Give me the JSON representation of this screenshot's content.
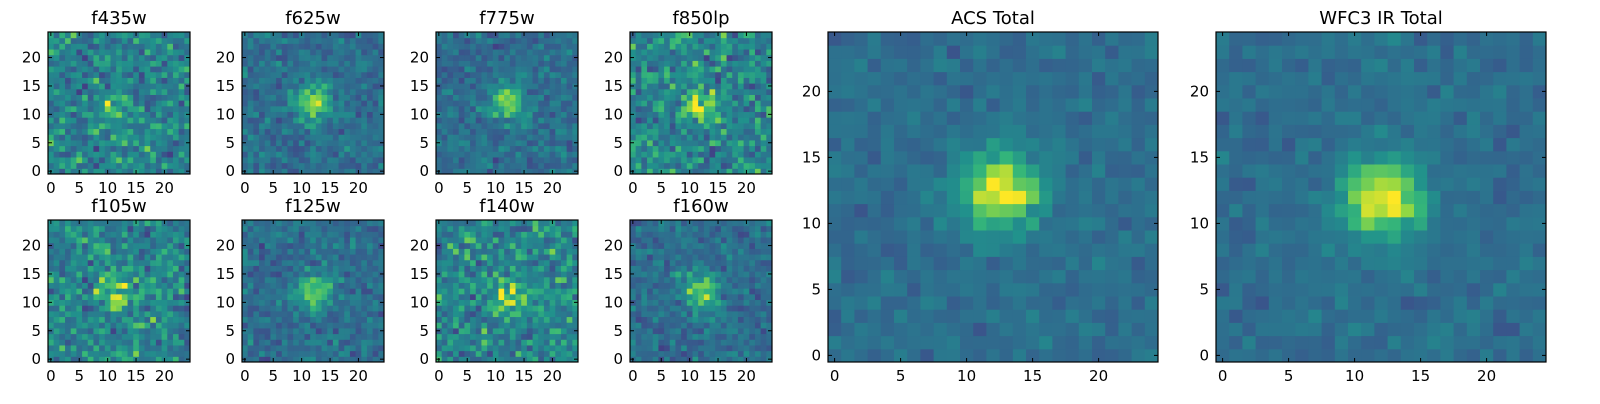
{
  "chart_data": [
    {
      "type": "heatmap",
      "title": "f435w",
      "colormap": "viridis",
      "x_range": [
        -0.5,
        24.5
      ],
      "y_range": [
        -0.5,
        24.5
      ],
      "xticks": [
        0,
        5,
        10,
        15,
        20
      ],
      "yticks": [
        0,
        5,
        10,
        15,
        20
      ],
      "source_center": [
        11,
        11
      ],
      "source_peak_relative": 0.3,
      "noise_level": "high",
      "grid": false
    },
    {
      "type": "heatmap",
      "title": "f625w",
      "colormap": "viridis",
      "x_range": [
        -0.5,
        24.5
      ],
      "y_range": [
        -0.5,
        24.5
      ],
      "xticks": [
        0,
        5,
        10,
        15,
        20
      ],
      "yticks": [
        0,
        5,
        10,
        15,
        20
      ],
      "source_center": [
        12,
        12
      ],
      "source_peak_relative": 0.85,
      "noise_level": "medium",
      "grid": false
    },
    {
      "type": "heatmap",
      "title": "f775w",
      "colormap": "viridis",
      "x_range": [
        -0.5,
        24.5
      ],
      "y_range": [
        -0.5,
        24.5
      ],
      "xticks": [
        0,
        5,
        10,
        15,
        20
      ],
      "yticks": [
        0,
        5,
        10,
        15,
        20
      ],
      "source_center": [
        12,
        12
      ],
      "source_peak_relative": 0.75,
      "noise_level": "medium",
      "grid": false
    },
    {
      "type": "heatmap",
      "title": "f850lp",
      "colormap": "viridis",
      "x_range": [
        -0.5,
        24.5
      ],
      "y_range": [
        -0.5,
        24.5
      ],
      "xticks": [
        0,
        5,
        10,
        15,
        20
      ],
      "yticks": [
        0,
        5,
        10,
        15,
        20
      ],
      "source_center": [
        12,
        12
      ],
      "source_peak_relative": 0.55,
      "noise_level": "high",
      "grid": false
    },
    {
      "type": "heatmap",
      "title": "f105w",
      "colormap": "viridis",
      "x_range": [
        -0.5,
        24.5
      ],
      "y_range": [
        -0.5,
        24.5
      ],
      "xticks": [
        0,
        5,
        10,
        15,
        20
      ],
      "yticks": [
        0,
        5,
        10,
        15,
        20
      ],
      "source_center": [
        11,
        12
      ],
      "source_peak_relative": 0.55,
      "noise_level": "high",
      "grid": false
    },
    {
      "type": "heatmap",
      "title": "f125w",
      "colormap": "viridis",
      "x_range": [
        -0.5,
        24.5
      ],
      "y_range": [
        -0.5,
        24.5
      ],
      "xticks": [
        0,
        5,
        10,
        15,
        20
      ],
      "yticks": [
        0,
        5,
        10,
        15,
        20
      ],
      "source_center": [
        12,
        12
      ],
      "source_peak_relative": 0.8,
      "noise_level": "medium",
      "grid": false
    },
    {
      "type": "heatmap",
      "title": "f140w",
      "colormap": "viridis",
      "x_range": [
        -0.5,
        24.5
      ],
      "y_range": [
        -0.5,
        24.5
      ],
      "xticks": [
        0,
        5,
        10,
        15,
        20
      ],
      "yticks": [
        0,
        5,
        10,
        15,
        20
      ],
      "source_center": [
        12,
        11
      ],
      "source_peak_relative": 0.55,
      "noise_level": "high",
      "grid": false
    },
    {
      "type": "heatmap",
      "title": "f160w",
      "colormap": "viridis",
      "x_range": [
        -0.5,
        24.5
      ],
      "y_range": [
        -0.5,
        24.5
      ],
      "xticks": [
        0,
        5,
        10,
        15,
        20
      ],
      "yticks": [
        0,
        5,
        10,
        15,
        20
      ],
      "source_center": [
        12,
        12
      ],
      "source_peak_relative": 0.8,
      "noise_level": "medium",
      "grid": false
    },
    {
      "type": "heatmap",
      "title": "ACS Total",
      "colormap": "viridis",
      "x_range": [
        -0.5,
        24.5
      ],
      "y_range": [
        -0.5,
        24.5
      ],
      "xticks": [
        0,
        5,
        10,
        15,
        20
      ],
      "yticks": [
        0,
        5,
        10,
        15,
        20
      ],
      "source_center": [
        12.5,
        12.5
      ],
      "source_peak_relative": 1.0,
      "noise_level": "low",
      "grid": false
    },
    {
      "type": "heatmap",
      "title": "WFC3 IR Total",
      "colormap": "viridis",
      "x_range": [
        -0.5,
        24.5
      ],
      "y_range": [
        -0.5,
        24.5
      ],
      "xticks": [
        0,
        5,
        10,
        15,
        20
      ],
      "yticks": [
        0,
        5,
        10,
        15,
        20
      ],
      "source_center": [
        12,
        12
      ],
      "source_peak_relative": 1.0,
      "noise_level": "low",
      "grid": false
    }
  ]
}
